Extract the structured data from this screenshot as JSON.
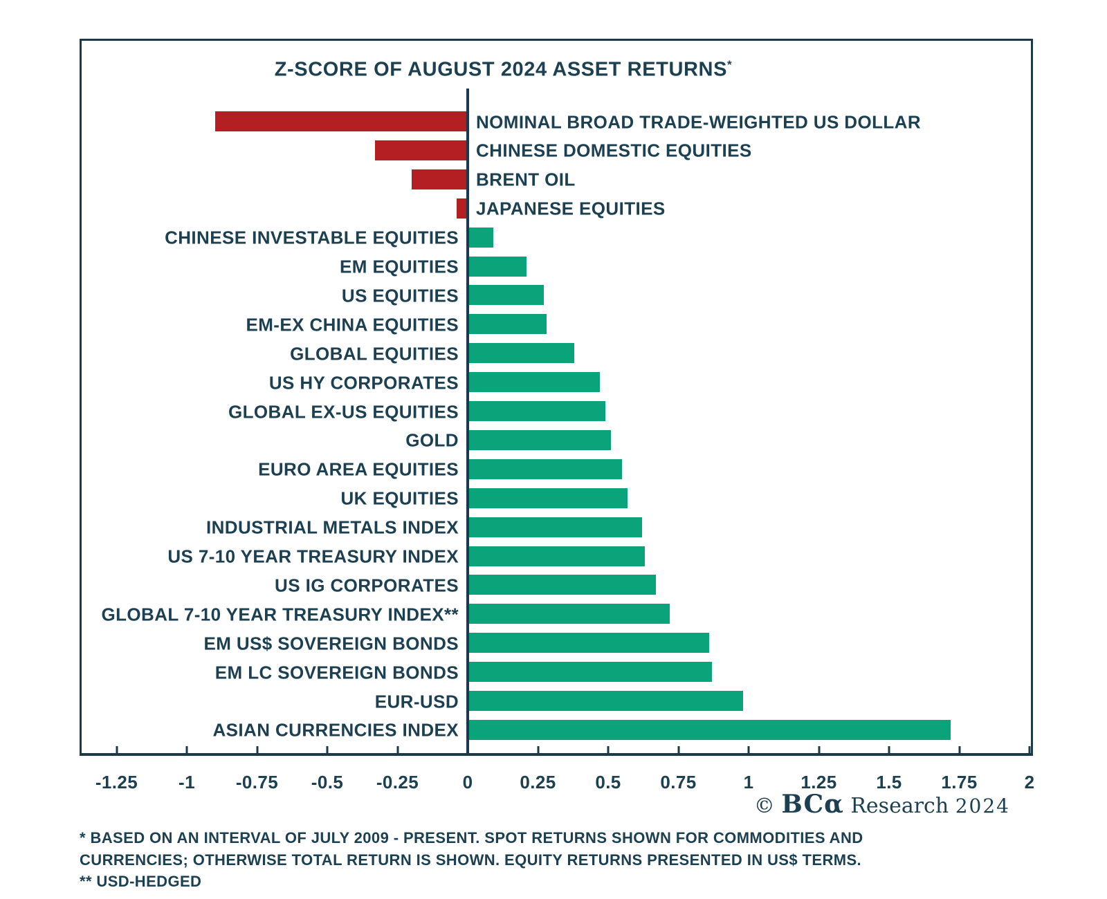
{
  "title": {
    "text": "Z-SCORE OF AUGUST 2024 ASSET RETURNS",
    "mark": "*"
  },
  "chart_data": {
    "type": "bar",
    "orientation": "horizontal",
    "title": "Z-SCORE OF AUGUST 2024 ASSET RETURNS*",
    "categories": [
      "NOMINAL BROAD TRADE-WEIGHTED US DOLLAR",
      "CHINESE DOMESTIC EQUITIES",
      "BRENT OIL",
      "JAPANESE EQUITIES",
      "CHINESE INVESTABLE EQUITIES",
      "EM EQUITIES",
      "US EQUITIES",
      "EM-EX CHINA EQUITIES",
      "GLOBAL EQUITIES",
      "US HY CORPORATES",
      "GLOBAL EX-US EQUITIES",
      "GOLD",
      "EURO AREA EQUITIES",
      "UK EQUITIES",
      "INDUSTRIAL METALS INDEX",
      "US 7-10 YEAR TREASURY INDEX",
      "US IG CORPORATES",
      "GLOBAL 7-10 YEAR TREASURY INDEX**",
      "EM US$ SOVEREIGN BONDS",
      "EM LC SOVEREIGN BONDS",
      "EUR-USD",
      "ASIAN CURRENCIES INDEX"
    ],
    "values": [
      -0.9,
      -0.33,
      -0.2,
      -0.04,
      0.09,
      0.21,
      0.27,
      0.28,
      0.38,
      0.47,
      0.49,
      0.51,
      0.55,
      0.57,
      0.62,
      0.63,
      0.67,
      0.72,
      0.86,
      0.87,
      0.98,
      1.72
    ],
    "xlabel": "",
    "ylabel": "",
    "xlim": [
      -1.25,
      2
    ],
    "x_tick_values": [
      -1.25,
      -1,
      -0.75,
      -0.5,
      -0.25,
      0,
      0.25,
      0.5,
      0.75,
      1,
      1.25,
      1.5,
      1.75,
      2
    ],
    "x_tick_labels": [
      "-1.25",
      "-1",
      "-0.75",
      "-0.5",
      "-0.25",
      "0",
      "0.25",
      "0.5",
      "0.75",
      "1",
      "1.25",
      "1.5",
      "1.75",
      "2"
    ],
    "grid": false,
    "legend": false,
    "colors": {
      "negative_bar": "#b41f23",
      "positive_bar": "#0ba379",
      "text": "#1c4051",
      "border": "#1b3948"
    }
  },
  "branding": {
    "copyright_symbol": "©",
    "brand": "BCα",
    "name": "Research",
    "year": "2024"
  },
  "footnotes": [
    "* BASED ON AN INTERVAL OF JULY 2009 - PRESENT. SPOT RETURNS SHOWN FOR COMMODITIES AND",
    "CURRENCIES; OTHERWISE TOTAL RETURN IS SHOWN. EQUITY RETURNS PRESENTED IN US$ TERMS.",
    "** USD-HEDGED"
  ]
}
